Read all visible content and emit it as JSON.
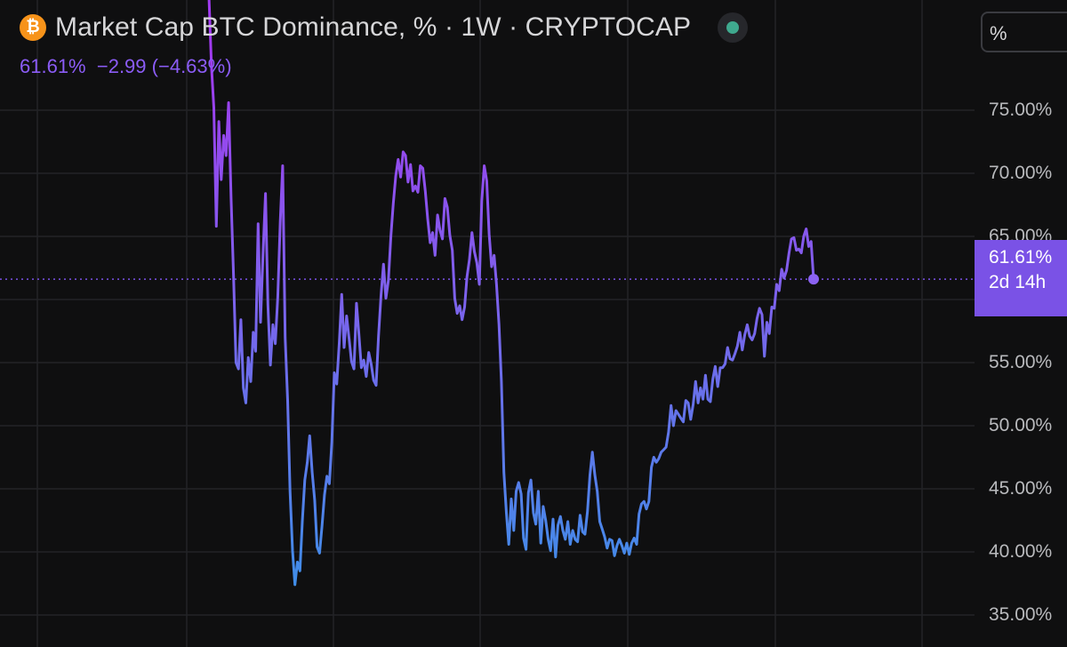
{
  "header": {
    "coin_symbol": "₿",
    "title": "Market Cap BTC Dominance, % · 1W · CRYPTOCAP",
    "last_value": "61.61%",
    "change": "−2.99",
    "change_pct": "(−4.63%)",
    "scale_label": "%"
  },
  "price_tag": {
    "value": "61.61%",
    "countdown": "2d 14h"
  },
  "colors": {
    "background": "#0f0f10",
    "line_top": "#a13bf0",
    "line_mid": "#7e61ec",
    "line_bottom": "#3e8fe8",
    "accent": "#7a52e6",
    "status_dot": "#3fa98e",
    "coin": "#f7931a"
  },
  "chart_data": {
    "type": "line",
    "title": "Market Cap BTC Dominance, % · 1W · CRYPTOCAP",
    "xlabel": "",
    "ylabel": "",
    "ylim": [
      34,
      84
    ],
    "ytick_labels": [
      "75.00%",
      "70.00%",
      "65.00%",
      "60.00%",
      "55.00%",
      "50.00%",
      "45.00%",
      "40.00%",
      "35.00%"
    ],
    "yticks": [
      75,
      70,
      65,
      60,
      55,
      50,
      45,
      40,
      35
    ],
    "last_value": 61.61,
    "grid": true,
    "series": [
      {
        "values": [
          84,
          78.5,
          75.2,
          65.8,
          74.1,
          69.5,
          73.0,
          71.4,
          75.6,
          68.0,
          62.0,
          55.0,
          54.5,
          58.4,
          53.0,
          51.8,
          55.4,
          53.5,
          57.4,
          55.9,
          66.0,
          58.2,
          63.6,
          68.4,
          59.6,
          54.8,
          58.0,
          56.5,
          60.2,
          66.2,
          70.6,
          57.0,
          52.0,
          44.8,
          40.1,
          37.4,
          39.2,
          38.5,
          42.4,
          45.7,
          47.1,
          49.2,
          46.3,
          44.1,
          40.4,
          39.9,
          42.1,
          44.5,
          46.0,
          45.4,
          48.7,
          54.2,
          53.3,
          56.5,
          60.4,
          56.2,
          58.7,
          56.9,
          55.1,
          54.5,
          59.7,
          57.3,
          54.6,
          55.2,
          53.9,
          55.8,
          54.9,
          53.6,
          53.2,
          57.1,
          60.3,
          62.8,
          60.1,
          61.5,
          65.0,
          67.6,
          69.8,
          71.1,
          69.7,
          71.7,
          71.4,
          69.3,
          70.7,
          68.6,
          69.0,
          68.5,
          70.6,
          70.4,
          68.6,
          66.4,
          64.5,
          65.3,
          63.5,
          66.7,
          65.5,
          64.8,
          68.0,
          67.3,
          65.1,
          63.9,
          60.1,
          58.9,
          59.5,
          58.4,
          59.4,
          61.8,
          63.2,
          65.3,
          63.8,
          62.9,
          61.2,
          67.8,
          70.6,
          69.4,
          65.2,
          62.6,
          63.5,
          61.2,
          58.0,
          53.5,
          46.3,
          43.1,
          40.6,
          44.2,
          41.7,
          44.8,
          45.5,
          44.6,
          41.1,
          40.2,
          44.7,
          45.7,
          43.1,
          42.2,
          44.8,
          40.7,
          43.6,
          42.5,
          41.0,
          40.1,
          42.6,
          39.6,
          42.1,
          42.8,
          41.7,
          41.0,
          42.4,
          40.6,
          41.7,
          41.0,
          40.8,
          42.9,
          41.6,
          41.4,
          43.2,
          46.1,
          47.9,
          46.1,
          44.8,
          42.4,
          41.8,
          41.2,
          40.3,
          41.0,
          40.9,
          39.7,
          40.5,
          41.0,
          40.5,
          39.9,
          40.7,
          39.8,
          40.7,
          41.1,
          40.6,
          43.0,
          43.8,
          44.0,
          43.4,
          44.0,
          46.7,
          47.5,
          47.1,
          47.4,
          47.9,
          48.1,
          48.3,
          49.5,
          51.6,
          50.0,
          51.2,
          50.9,
          50.6,
          50.3,
          52.0,
          51.8,
          50.5,
          51.7,
          53.5,
          51.8,
          53.0,
          52.1,
          54.0,
          52.1,
          51.9,
          53.7,
          54.7,
          53.1,
          54.6,
          54.6,
          54.9,
          56.2,
          55.3,
          55.2,
          55.7,
          56.3,
          57.4,
          56.0,
          57.2,
          58.0,
          57.1,
          56.8,
          57.3,
          58.5,
          59.3,
          58.8,
          55.5,
          58.2,
          57.3,
          59.4,
          59.3,
          61.2,
          60.7,
          62.4,
          61.7,
          62.3,
          63.7,
          64.8,
          64.9,
          63.9,
          64.0,
          63.7,
          65.0,
          65.6,
          64.2,
          64.6,
          61.61
        ]
      }
    ]
  }
}
